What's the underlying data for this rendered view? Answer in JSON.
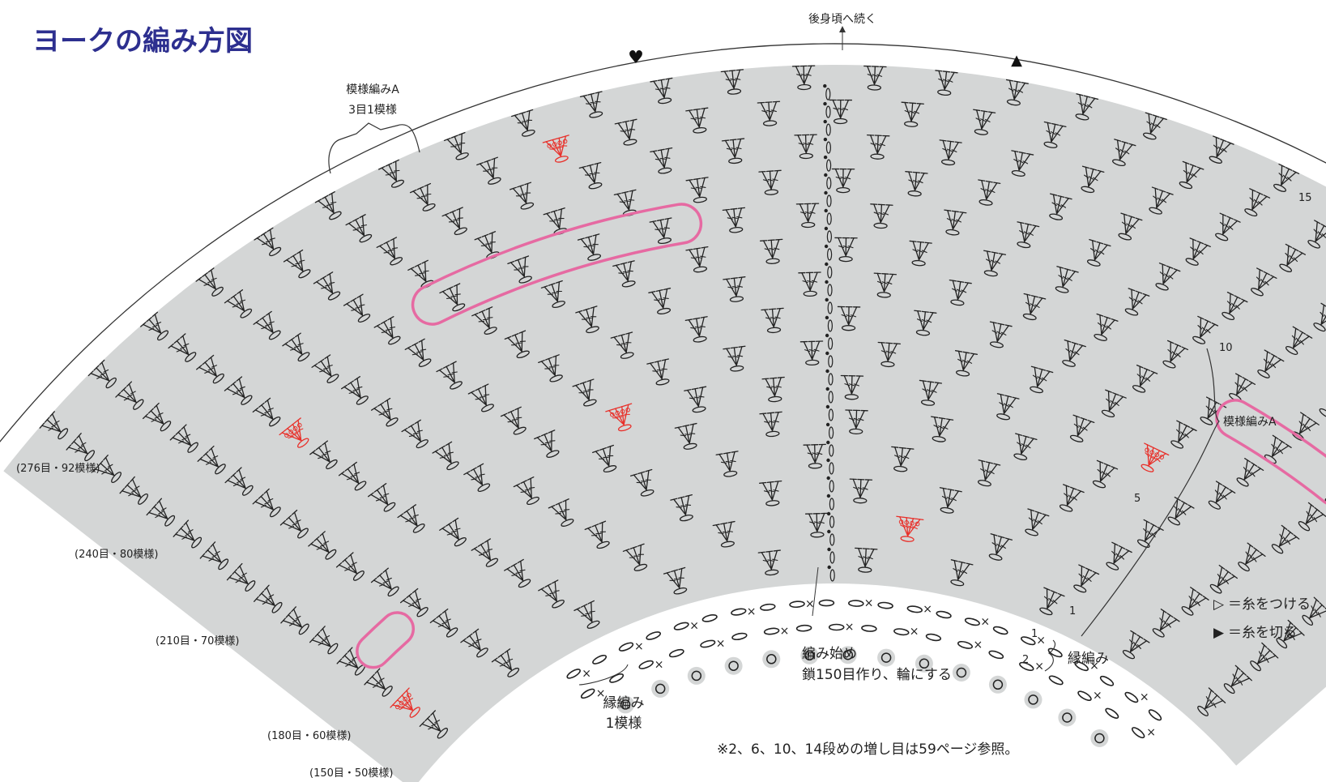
{
  "title": "ヨークの編み方図",
  "top_label": "後身頃へ続く",
  "heart_symbol": "♥",
  "triangle_symbol": "▲",
  "pattern_a_label": "模様編みA",
  "pattern_a_repeat": "3目1模様",
  "pattern_a_right": "模様編みA",
  "stitch_counts": [
    "(276目・92模様)",
    "(240目・80模様)",
    "(210目・70模様)",
    "(180目・60模様)",
    "(150目・50模様)"
  ],
  "row_numbers": [
    "15",
    "10",
    "5",
    "1"
  ],
  "edge_row_numbers": [
    "1",
    "2"
  ],
  "edge_label": "縁編み",
  "edge_repeat_label": "縁編み",
  "edge_repeat_sub": "1模様",
  "start_label": "編み始め",
  "start_sub": "鎖150目作り、輪にする",
  "note": "※2、6、10、14段めの増し目は59ページ参照。",
  "legend": [
    {
      "symbol": "▷",
      "text": "＝糸をつける"
    },
    {
      "symbol": "▶",
      "text": "＝糸を切る"
    }
  ],
  "colors": {
    "title": "#2d2f8f",
    "fan_fill": "#d4d6d6",
    "highlight": "#e66aa2",
    "increase": "#e8302a",
    "stitch": "#222222"
  }
}
